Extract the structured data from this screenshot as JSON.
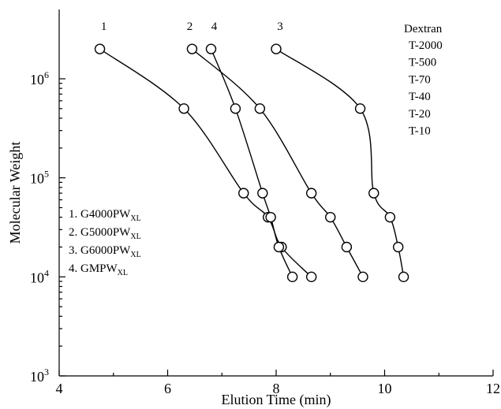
{
  "chart_data": {
    "type": "line",
    "xlabel": "Elution Time (min)",
    "ylabel": "Molecular Weight",
    "xlim": [
      4,
      12
    ],
    "ylim_exponent": [
      3,
      6
    ],
    "yscale": "log",
    "x_ticks": [
      4,
      6,
      8,
      10,
      12
    ],
    "x_tick_labels": [
      "4",
      "6",
      "8",
      "10",
      "12"
    ],
    "y_ticks": [
      1000,
      10000,
      100000,
      1000000
    ],
    "y_tick_labels": [
      {
        "base": "10",
        "exp": "3"
      },
      {
        "base": "10",
        "exp": "4"
      },
      {
        "base": "10",
        "exp": "5"
      },
      {
        "base": "10",
        "exp": "6"
      }
    ],
    "grid": false,
    "dextran": {
      "title": "Dextran",
      "standards": [
        "T-2000",
        "T-500",
        "T-70",
        "T-40",
        "T-20",
        "T-10"
      ]
    },
    "legend": {
      "placement": "lower-left",
      "items": [
        {
          "prefix": "1. G4000PW",
          "sub": "XL"
        },
        {
          "prefix": "2. G5000PW",
          "sub": "XL"
        },
        {
          "prefix": "3. G6000PW",
          "sub": "XL"
        },
        {
          "prefix": "4. GMPW",
          "sub": "XL"
        }
      ]
    },
    "series": [
      {
        "name": "1",
        "label": "1",
        "x": [
          4.75,
          6.3,
          7.4,
          7.85,
          8.1,
          8.65
        ],
        "y": [
          2000000,
          500000,
          70000,
          40000,
          20000,
          10000
        ]
      },
      {
        "name": "2",
        "label": "2",
        "x": [
          6.45,
          7.7,
          8.65,
          9.0,
          9.3,
          9.6
        ],
        "y": [
          2000000,
          500000,
          70000,
          40000,
          20000,
          10000
        ]
      },
      {
        "name": "3",
        "label": "3",
        "x": [
          8.0,
          9.55,
          9.8,
          10.1,
          10.25,
          10.35
        ],
        "y": [
          2000000,
          500000,
          70000,
          40000,
          20000,
          10000
        ]
      },
      {
        "name": "4",
        "label": "4",
        "x": [
          6.8,
          7.25,
          7.75,
          7.9,
          8.05,
          8.3
        ],
        "y": [
          2000000,
          500000,
          70000,
          40000,
          20000,
          10000
        ]
      }
    ]
  }
}
